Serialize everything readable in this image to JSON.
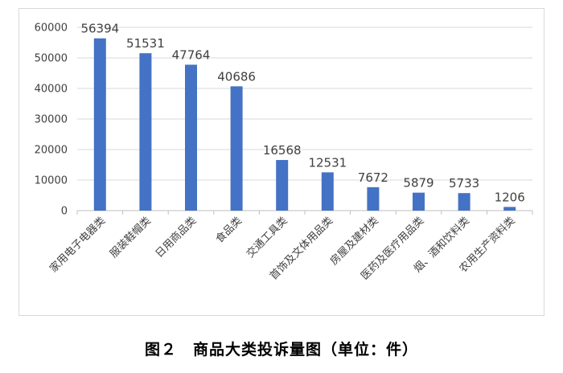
{
  "caption": "图２　商品大类投诉量图（单位：件）",
  "chart_data": {
    "type": "bar",
    "categories": [
      "家用电子电器类",
      "服装鞋帽类",
      "日用商品类",
      "食品类",
      "交通工具类",
      "首饰及文体用品类",
      "房屋及建材类",
      "医药及医疗用品类",
      "烟、酒和饮料类",
      "农用生产资料类"
    ],
    "values": [
      56394,
      51531,
      47764,
      40686,
      16568,
      12531,
      7672,
      5879,
      5733,
      1206
    ],
    "data_labels": [
      "56394",
      "51531",
      "47764",
      "40686",
      "16568",
      "12531",
      "7672",
      "5879",
      "5733",
      "1206"
    ],
    "y_ticks": [
      "0",
      "10000",
      "20000",
      "30000",
      "40000",
      "50000",
      "60000"
    ],
    "ylim": [
      0,
      60000
    ],
    "grid": true,
    "legend": "none",
    "bar_color": "#4472c4",
    "grid_color": "#d9d9d9"
  }
}
